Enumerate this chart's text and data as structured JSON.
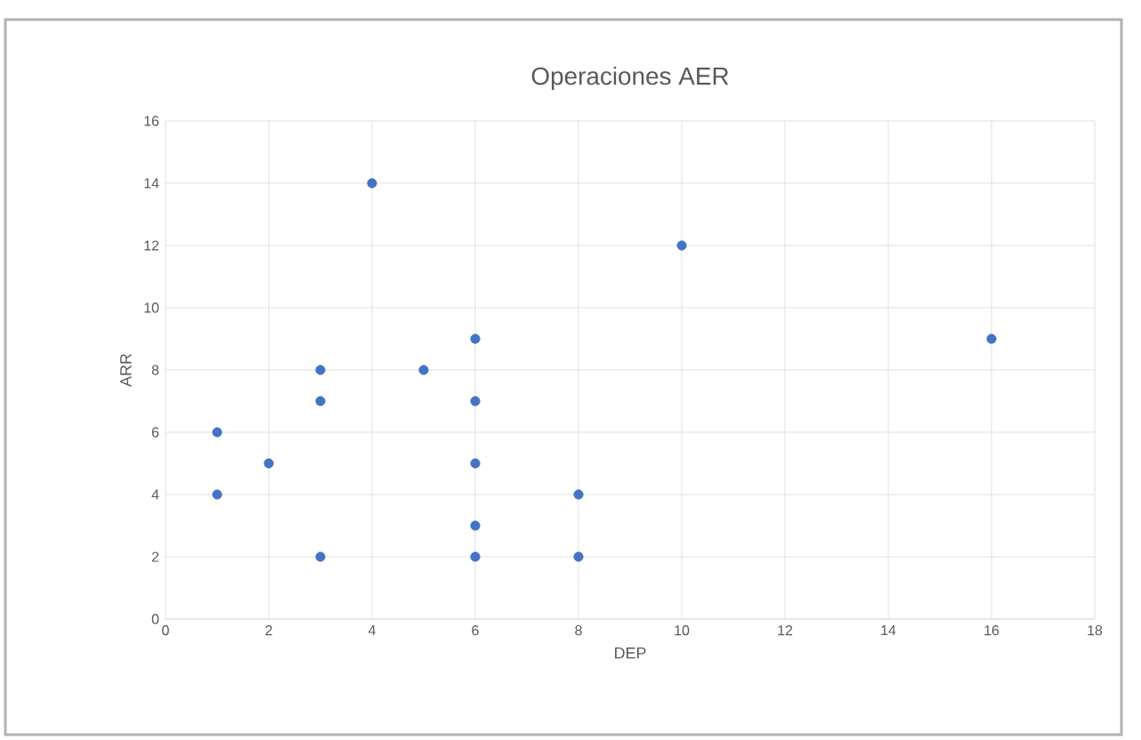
{
  "chart_data": {
    "type": "scatter",
    "title": "Operaciones AER",
    "xlabel": "DEP",
    "ylabel": "ARR",
    "x": [
      1,
      1,
      2,
      3,
      3,
      3,
      4,
      5,
      6,
      6,
      6,
      6,
      6,
      8,
      8,
      10,
      16
    ],
    "values": [
      6,
      4,
      5,
      8,
      7,
      2,
      14,
      8,
      9,
      7,
      5,
      3,
      2,
      4,
      2,
      12,
      9
    ],
    "color": "#4472c4",
    "marker": "circle",
    "grid": true,
    "xlim": [
      0,
      18
    ],
    "xticks": [
      0,
      2,
      4,
      6,
      8,
      10,
      12,
      14,
      16,
      18
    ],
    "ylim": [
      0,
      16
    ],
    "yticks": [
      0,
      2,
      4,
      6,
      8,
      10,
      12,
      14,
      16
    ]
  }
}
